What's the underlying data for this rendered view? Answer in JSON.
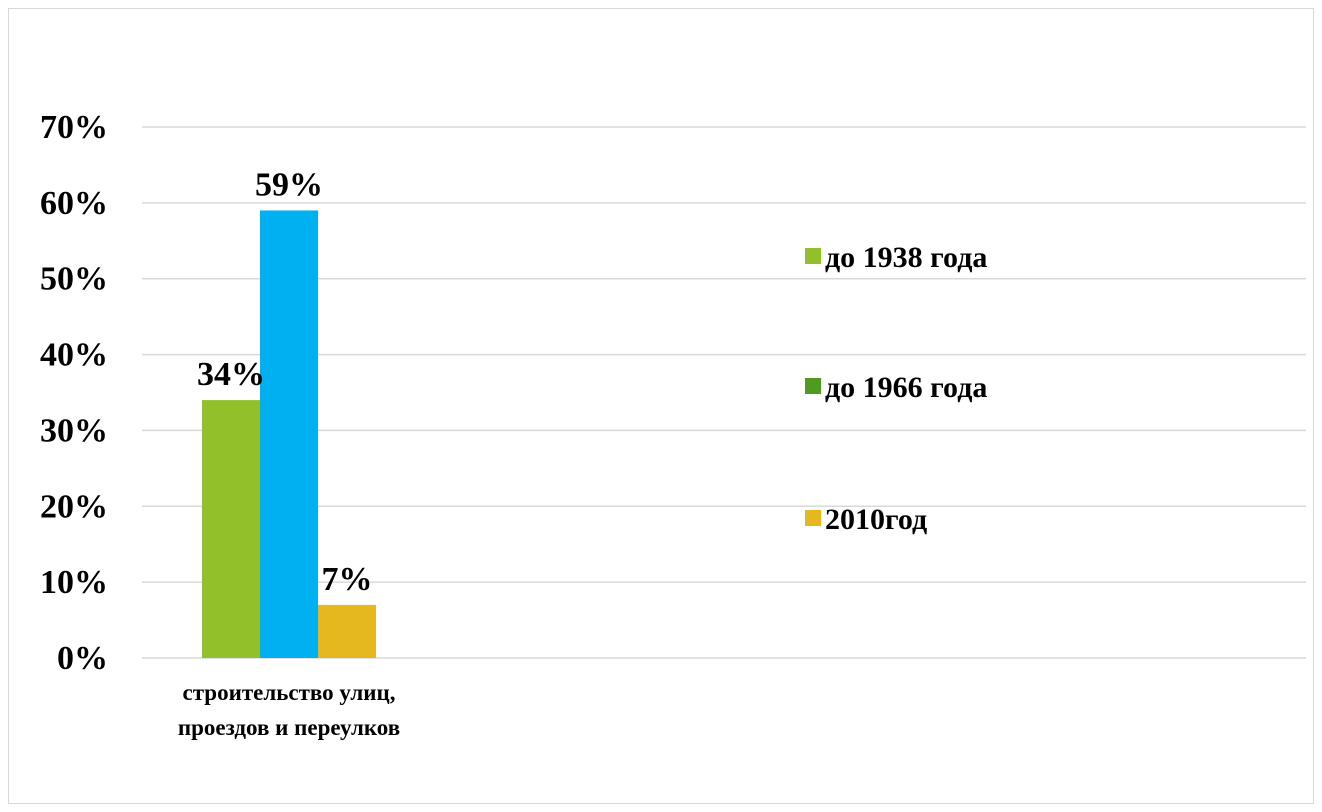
{
  "chart_data": {
    "type": "bar",
    "categories": [
      "строительство улиц, проездов и переулков"
    ],
    "category_lines": [
      [
        "строительство улиц,",
        "проездов и переулков"
      ]
    ],
    "series": [
      {
        "name": "до 1938 года",
        "values": [
          0.34
        ],
        "label": "34%",
        "color": "#92c02a"
      },
      {
        "name": "до 1966 года",
        "values": [
          0.59
        ],
        "label": "59%",
        "color": "#00b0f0"
      },
      {
        "name": "2010год",
        "values": [
          0.07
        ],
        "label": "7%",
        "color": "#e6b820"
      }
    ],
    "legend_swatch_colors": [
      "#92c02a",
      "#4f9a20",
      "#e6b820"
    ],
    "ylim": [
      0,
      0.7
    ],
    "yticks": [
      {
        "value": 0,
        "label": "0%"
      },
      {
        "value": 0.1,
        "label": "10%"
      },
      {
        "value": 0.2,
        "label": "20%"
      },
      {
        "value": 0.3,
        "label": "30%"
      },
      {
        "value": 0.4,
        "label": "40%"
      },
      {
        "value": 0.5,
        "label": "50%"
      },
      {
        "value": 0.6,
        "label": "60%"
      },
      {
        "value": 0.7,
        "label": "70%"
      }
    ],
    "grid": true,
    "legend_position": "right",
    "title": "",
    "xlabel": "",
    "ylabel": ""
  }
}
